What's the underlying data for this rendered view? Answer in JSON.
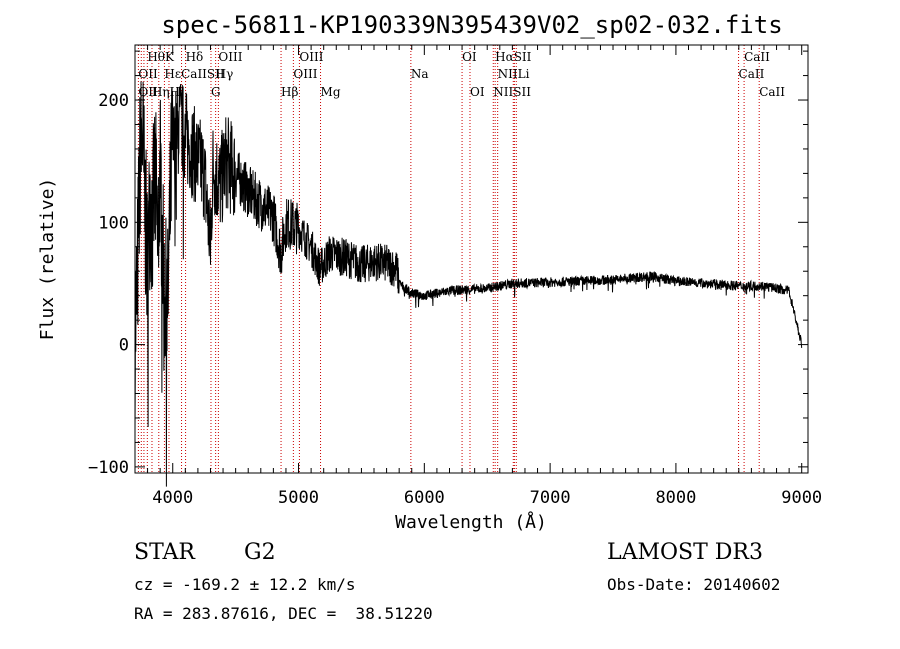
{
  "chart_data": {
    "type": "line",
    "title": "spec-56811-KP190339N395439V02_sp02-032.fits",
    "xlabel": "Wavelength (Å)",
    "ylabel": "Flux (relative)",
    "xlim": [
      3700,
      9050
    ],
    "ylim": [
      -105,
      245
    ],
    "xticks": [
      4000,
      5000,
      6000,
      7000,
      8000,
      9000
    ],
    "yticks": [
      -100,
      0,
      100,
      200
    ],
    "x_minor_step": 100,
    "y_minor_step": 20,
    "line_color": "#000000",
    "marker_color": "#cc0000",
    "spectrum_anchors": [
      [
        3700,
        0
      ],
      [
        3720,
        60
      ],
      [
        3740,
        150
      ],
      [
        3760,
        170
      ],
      [
        3780,
        110
      ],
      [
        3800,
        60
      ],
      [
        3820,
        120
      ],
      [
        3840,
        100
      ],
      [
        3860,
        140
      ],
      [
        3880,
        80
      ],
      [
        3900,
        150
      ],
      [
        3930,
        40
      ],
      [
        3960,
        30
      ],
      [
        3990,
        150
      ],
      [
        4020,
        170
      ],
      [
        4060,
        180
      ],
      [
        4100,
        170
      ],
      [
        4150,
        160
      ],
      [
        4200,
        150
      ],
      [
        4250,
        140
      ],
      [
        4300,
        80
      ],
      [
        4320,
        145
      ],
      [
        4380,
        130
      ],
      [
        4420,
        150
      ],
      [
        4500,
        140
      ],
      [
        4600,
        125
      ],
      [
        4700,
        115
      ],
      [
        4800,
        105
      ],
      [
        4860,
        75
      ],
      [
        4900,
        100
      ],
      [
        5000,
        95
      ],
      [
        5100,
        80
      ],
      [
        5170,
        62
      ],
      [
        5250,
        75
      ],
      [
        5400,
        70
      ],
      [
        5500,
        65
      ],
      [
        5600,
        68
      ],
      [
        5700,
        66
      ],
      [
        5780,
        62
      ],
      [
        5800,
        50
      ],
      [
        5900,
        42
      ],
      [
        6000,
        40
      ],
      [
        6200,
        44
      ],
      [
        6500,
        46
      ],
      [
        6600,
        48
      ],
      [
        6700,
        50
      ],
      [
        7000,
        51
      ],
      [
        7500,
        53
      ],
      [
        7800,
        56
      ],
      [
        8000,
        52
      ],
      [
        8500,
        48
      ],
      [
        8700,
        48
      ],
      [
        8900,
        44
      ],
      [
        9000,
        0
      ]
    ],
    "line_markers": [
      {
        "label": "Hδ",
        "x": 4102,
        "row": 1
      },
      {
        "label": "HθK",
        "x": 3798,
        "row": 1
      },
      {
        "label": "OII",
        "x": 3727,
        "row": 2
      },
      {
        "label": "OII",
        "x": 3727,
        "row": 3
      },
      {
        "label": "HεCaIISII",
        "x": 3934,
        "row": 2
      },
      {
        "label": "HηH",
        "x": 3835,
        "row": 3
      },
      {
        "label": "OIII",
        "x": 4363,
        "row": 1
      },
      {
        "label": "Hγ",
        "x": 4341,
        "row": 2
      },
      {
        "label": "G",
        "x": 4304,
        "row": 3
      },
      {
        "label": "OIII",
        "x": 5007,
        "row": 1
      },
      {
        "label": "OIII",
        "x": 4959,
        "row": 2
      },
      {
        "label": "Hβ",
        "x": 4861,
        "row": 3
      },
      {
        "label": "Mg",
        "x": 5175,
        "row": 3
      },
      {
        "label": "Na",
        "x": 5893,
        "row": 2
      },
      {
        "label": "OI",
        "x": 6300,
        "row": 1
      },
      {
        "label": "OI",
        "x": 6363,
        "row": 3
      },
      {
        "label": "HαSII",
        "x": 6563,
        "row": 1
      },
      {
        "label": "NIILi",
        "x": 6583,
        "row": 2
      },
      {
        "label": "NIISII",
        "x": 6548,
        "row": 3
      },
      {
        "label": "CaII",
        "x": 8542,
        "row": 1
      },
      {
        "label": "CaII",
        "x": 8498,
        "row": 2
      },
      {
        "label": "CaII",
        "x": 8662,
        "row": 3
      }
    ],
    "marker_lines_x": [
      3727,
      3750,
      3771,
      3798,
      3835,
      3889,
      3934,
      3970,
      4070,
      4102,
      4304,
      4341,
      4363,
      4861,
      4959,
      5007,
      5175,
      5893,
      6300,
      6363,
      6548,
      6563,
      6583,
      6707,
      6716,
      6731,
      8498,
      8542,
      8662
    ]
  },
  "info": {
    "class": "STAR",
    "subclass": "G2",
    "survey": "LAMOST DR3",
    "cz": "cz = -169.2 ± 12.2 km/s",
    "obs_date": "Obs-Date: 20140602",
    "coords": "RA = 283.87616, DEC =  38.51220"
  }
}
